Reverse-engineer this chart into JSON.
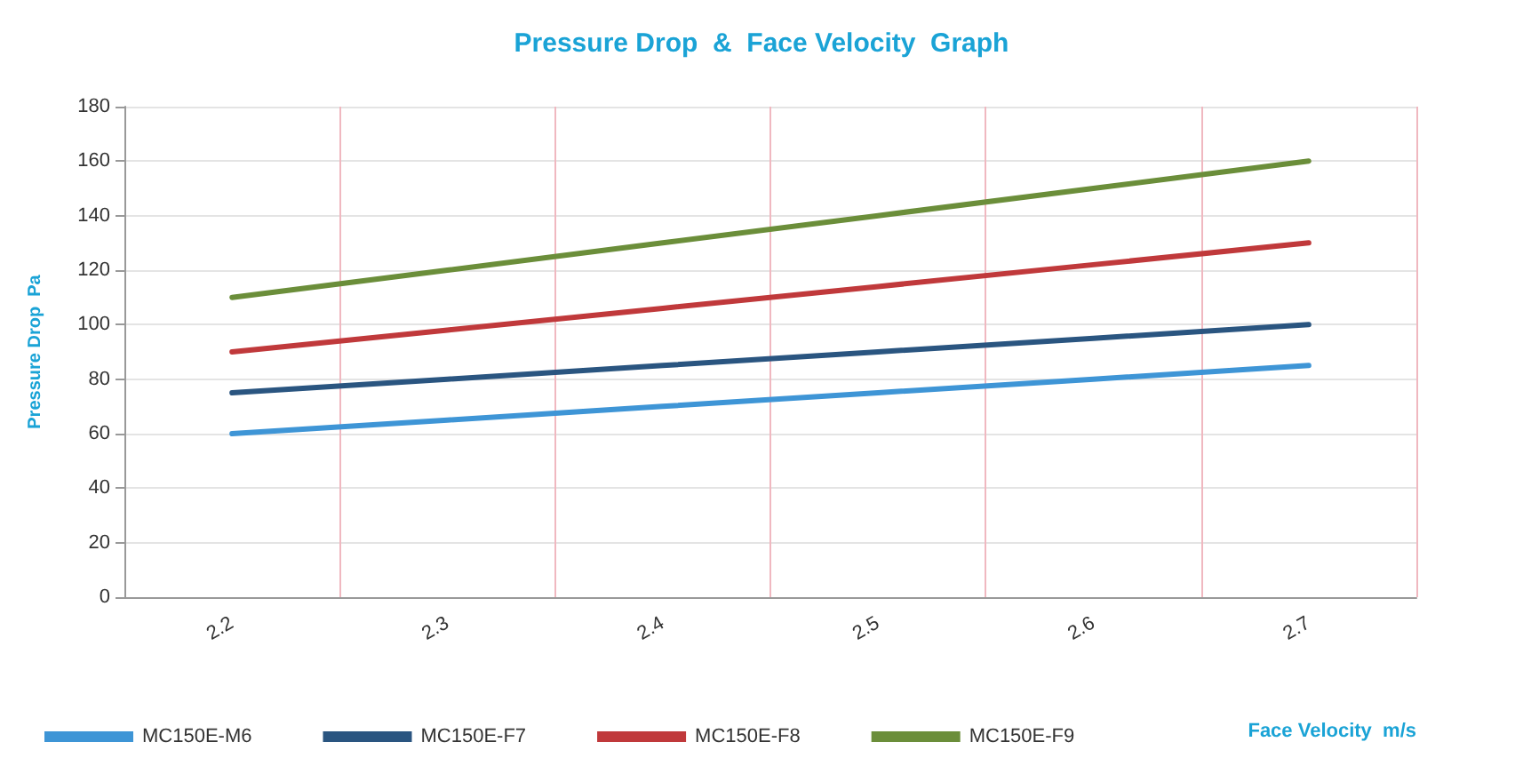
{
  "chart_data": {
    "type": "line",
    "title": "Pressure Drop  &  Face Velocity  Graph",
    "xlabel": "Face Velocity  m/s",
    "ylabel": "Pressure Drop  Pa",
    "categories": [
      "2.2",
      "2.3",
      "2.4",
      "2.5",
      "2.6",
      "2.7"
    ],
    "series": [
      {
        "name": "MC150E-M6",
        "color": "#3e95d6",
        "values": [
          60,
          65,
          70,
          75,
          80,
          85
        ]
      },
      {
        "name": "MC150E-F7",
        "color": "#2a5580",
        "values": [
          75,
          80,
          85,
          90,
          95,
          100
        ]
      },
      {
        "name": "MC150E-F8",
        "color": "#c0393b",
        "values": [
          90,
          98,
          106,
          114,
          122,
          130
        ]
      },
      {
        "name": "MC150E-F9",
        "color": "#6b8e3a",
        "values": [
          110,
          120,
          130,
          140,
          150,
          160
        ]
      }
    ],
    "ylim": [
      0,
      180
    ],
    "yticks": [
      0,
      20,
      40,
      60,
      80,
      100,
      120,
      140,
      160,
      180
    ],
    "grid": true,
    "legend": "bottom",
    "marker": "none",
    "line_style": "solid"
  }
}
